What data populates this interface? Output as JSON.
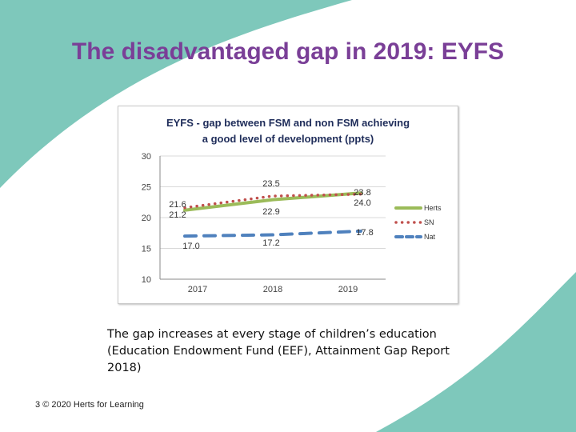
{
  "slide": {
    "title": "The disadvantaged gap in 2019: EYFS",
    "body_text": "The gap increases at every stage of children’s education (Education Endowment Fund (EEF), Attainment Gap Report 2018)",
    "footer_number": "3",
    "footer_text": "© 2020 Herts for Learning"
  },
  "colors": {
    "teal": "#7ec8bb",
    "title": "#7a3f97",
    "herts": "#9bbb59",
    "sn": "#c0504d",
    "nat": "#4f81bd"
  },
  "chart_data": {
    "type": "line",
    "title_lines": [
      "EYFS - gap between FSM and non FSM achieving",
      "a good level of development (ppts)"
    ],
    "categories": [
      "2017",
      "2018",
      "2019"
    ],
    "ylim": [
      10,
      30
    ],
    "yticks": [
      10,
      15,
      20,
      25,
      30
    ],
    "grid": "horizontal",
    "legend_position": "right",
    "series": [
      {
        "name": "Herts",
        "values": [
          21.2,
          22.9,
          24.0
        ],
        "style": "solid",
        "labels": [
          "21.2",
          "22.9",
          "24.0"
        ]
      },
      {
        "name": "SN",
        "values": [
          21.6,
          23.5,
          23.8
        ],
        "style": "dotted",
        "labels": [
          "21.6",
          "23.5",
          "23.8"
        ]
      },
      {
        "name": "Nat",
        "values": [
          17.0,
          17.2,
          17.8
        ],
        "style": "dashed",
        "labels": [
          "17.0",
          "17.2",
          "17.8"
        ]
      }
    ]
  }
}
